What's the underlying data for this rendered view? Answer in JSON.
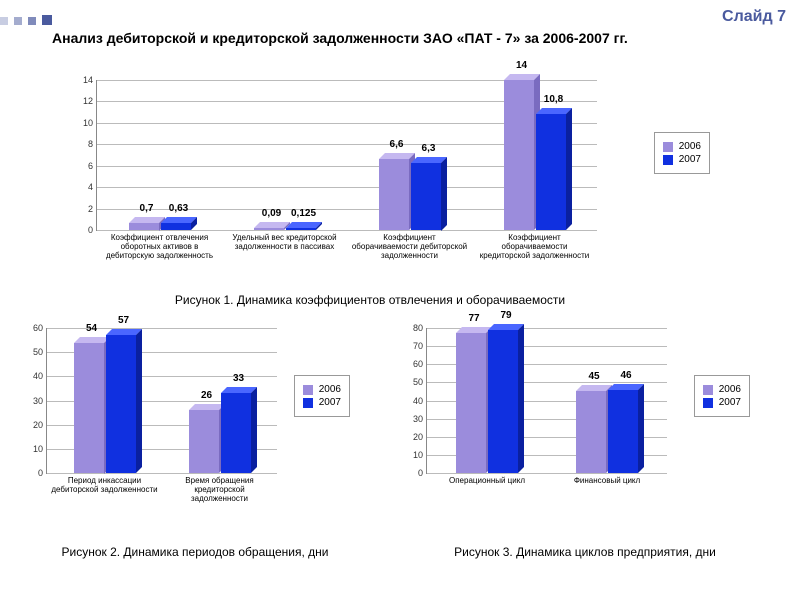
{
  "slide_number": "Слайд 7",
  "title": "Анализ дебиторской и кредиторской задолженности ЗАО «ПАТ - 7» за 2006-2007 гг.",
  "colors": {
    "series_2006_front": "#9b8cdc",
    "series_2006_top": "#c5b8f0",
    "series_2006_side": "#7a6bc0",
    "series_2007_front": "#1030e0",
    "series_2007_top": "#4a66ff",
    "series_2007_side": "#0a20a0",
    "grid": "#bbbbbb",
    "text": "#000000"
  },
  "legend_labels": [
    "2006",
    "2007"
  ],
  "chart1": {
    "type": "bar",
    "ylim": [
      0,
      14
    ],
    "ytick_step": 2,
    "categories": [
      "Коэффициент отвлечения оборотных активов в дебиторскую задолженность",
      "Удельный вес кредиторской задолженности в пассивах",
      "Коэффициент оборачиваемости дебиторской задолженности",
      "Коэффициент оборачиваемости кредиторской задолженности"
    ],
    "series": [
      {
        "name": "2006",
        "values": [
          0.7,
          0.09,
          6.6,
          14
        ],
        "labels": [
          "0,7",
          "0,09",
          "6,6",
          "14"
        ]
      },
      {
        "name": "2007",
        "values": [
          0.63,
          0.125,
          6.3,
          10.8
        ],
        "labels": [
          "0,63",
          "0,125",
          "6,3",
          "10,8"
        ]
      }
    ],
    "caption": "Рисунок 1. Динамика коэффициентов отвлечения и оборачиваемости"
  },
  "chart2": {
    "type": "bar",
    "ylim": [
      0,
      60
    ],
    "ytick_step": 10,
    "categories": [
      "Период инкассации дебиторской задолженности",
      "Время обращения кредиторской задолженности"
    ],
    "series": [
      {
        "name": "2006",
        "values": [
          54,
          26
        ],
        "labels": [
          "54",
          "26"
        ]
      },
      {
        "name": "2007",
        "values": [
          57,
          33
        ],
        "labels": [
          "57",
          "33"
        ]
      }
    ],
    "caption": "Рисунок 2. Динамика периодов обращения, дни"
  },
  "chart3": {
    "type": "bar",
    "ylim": [
      0,
      80
    ],
    "ytick_step": 10,
    "categories": [
      "Операционный цикл",
      "Финансовый цикл"
    ],
    "series": [
      {
        "name": "2006",
        "values": [
          77,
          45
        ],
        "labels": [
          "77",
          "45"
        ]
      },
      {
        "name": "2007",
        "values": [
          79,
          46
        ],
        "labels": [
          "79",
          "46"
        ]
      }
    ],
    "caption": "Рисунок 3. Динамика циклов предприятия, дни"
  }
}
